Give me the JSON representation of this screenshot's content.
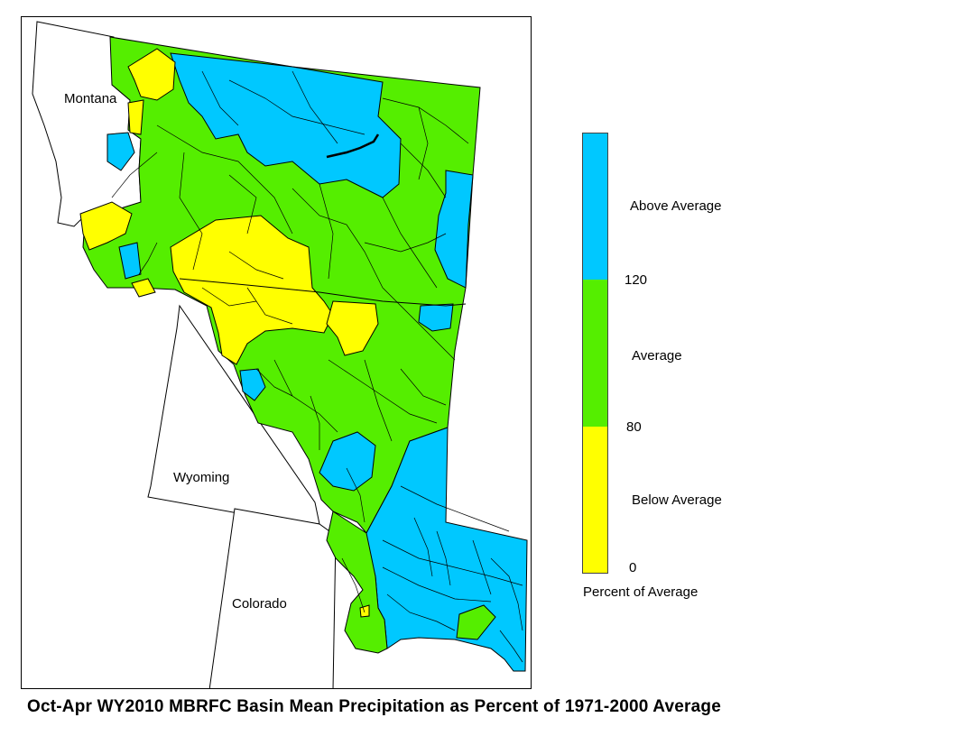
{
  "map": {
    "states": {
      "montana": "Montana",
      "wyoming": "Wyoming",
      "colorado": "Colorado"
    },
    "colors": {
      "above": "#00c8ff",
      "average": "#55ee00",
      "below": "#ffff00",
      "outline": "#000000"
    }
  },
  "legend": {
    "categories": [
      {
        "label": "Above Average",
        "color": "#00c8ff",
        "range": [
          120,
          null
        ]
      },
      {
        "label": "Average",
        "color": "#55ee00",
        "range": [
          80,
          120
        ]
      },
      {
        "label": "Below Average",
        "color": "#ffff00",
        "range": [
          0,
          80
        ]
      }
    ],
    "breaks": [
      "120",
      "80",
      "0"
    ],
    "title": "Percent of Average"
  },
  "caption": "Oct-Apr WY2010 MBRFC Basin Mean Precipitation as Percent of 1971-2000 Average"
}
